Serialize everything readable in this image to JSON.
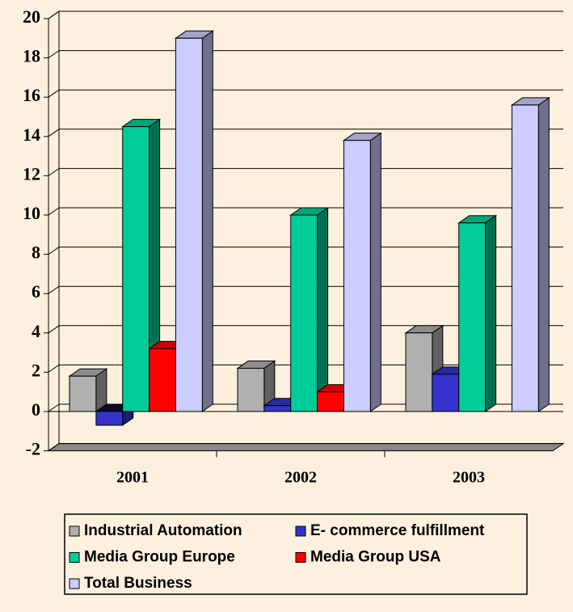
{
  "chart_data": {
    "type": "bar3d",
    "categories": [
      "2001",
      "2002",
      "2003"
    ],
    "series": [
      {
        "name": "Industrial Automation",
        "color": "#b0b0b0",
        "values": [
          1.8,
          2.2,
          4.0
        ]
      },
      {
        "name": "E- commerce fulfillment",
        "color": "#3333cc",
        "values": [
          -0.7,
          0.3,
          1.9
        ]
      },
      {
        "name": "Media Group Europe",
        "color": "#00cc99",
        "values": [
          14.5,
          10.0,
          9.6
        ]
      },
      {
        "name": "Media Group USA",
        "color": "#ff0000",
        "values": [
          3.2,
          1.0,
          null
        ]
      },
      {
        "name": "Total Business",
        "color": "#ccccff",
        "values": [
          19.0,
          13.8,
          15.6
        ]
      }
    ],
    "ylim": [
      -2,
      20
    ],
    "yticks": [
      -2,
      0,
      2,
      4,
      6,
      8,
      10,
      12,
      14,
      16,
      18,
      20
    ],
    "grid": true
  }
}
